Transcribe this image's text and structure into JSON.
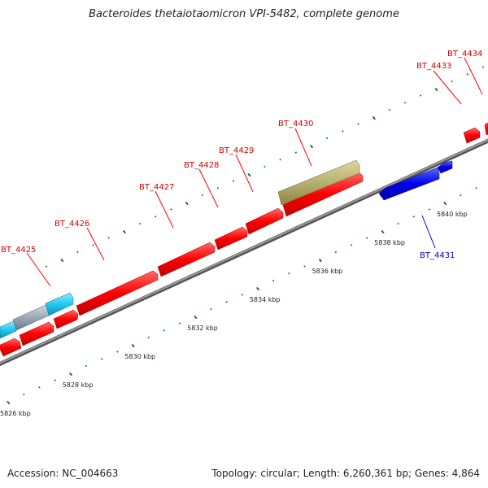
{
  "title": "Bacteroides thetaiotaomicron VPI-5482, complete genome",
  "footer": {
    "accession": "Accession: NC_004663",
    "summary": "Topology: circular; Length: 6,260,361 bp; Genes: 4,864"
  },
  "colors": {
    "forward_gene": "#ff0000",
    "reverse_gene": "#0000ee",
    "rna_gene_cyan": "#22c8f0",
    "rna_gene_gray": "#9aa8b8",
    "olive_gene": "#b8b070",
    "backbone": "#7a7a7a",
    "tick": "#137a13"
  },
  "scale_ticks": [
    {
      "label": "5826 kbp",
      "kbp": 5826
    },
    {
      "label": "5828 kbp",
      "kbp": 5828
    },
    {
      "label": "5830 kbp",
      "kbp": 5830
    },
    {
      "label": "5832 kbp",
      "kbp": 5832
    },
    {
      "label": "5834 kbp",
      "kbp": 5834
    },
    {
      "label": "5836 kbp",
      "kbp": 5836
    },
    {
      "label": "5838 kbp",
      "kbp": 5838
    },
    {
      "label": "5840 kbp",
      "kbp": 5840
    }
  ],
  "gene_labels": [
    {
      "id": "BT_4425",
      "strand": "forward"
    },
    {
      "id": "BT_4426",
      "strand": "forward"
    },
    {
      "id": "BT_4427",
      "strand": "forward"
    },
    {
      "id": "BT_4428",
      "strand": "forward"
    },
    {
      "id": "BT_4429",
      "strand": "forward"
    },
    {
      "id": "BT_4430",
      "strand": "forward"
    },
    {
      "id": "BT_4431",
      "strand": "reverse"
    },
    {
      "id": "BT_4433",
      "strand": "forward"
    },
    {
      "id": "BT_4434",
      "strand": "forward"
    }
  ]
}
